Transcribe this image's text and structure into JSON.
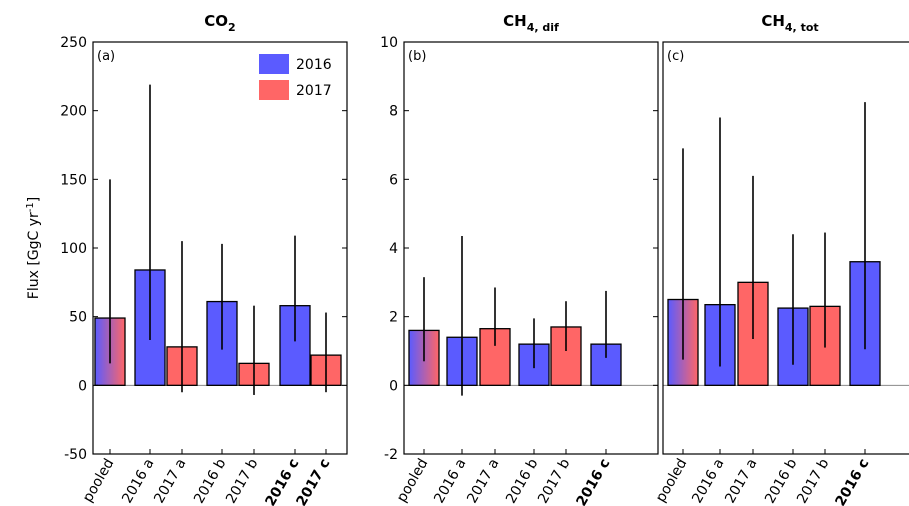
{
  "ylabel": "Flux [GgC yr-1]",
  "ylabel_parts": {
    "main": "Flux [GgC yr",
    "sup": "-1",
    "end": "]"
  },
  "legend": [
    {
      "label": "2016",
      "color": "#5b5bff"
    },
    {
      "label": "2017",
      "color": "#ff6666"
    }
  ],
  "colors": {
    "y2016": "#5b5bff",
    "y2017": "#ff6666",
    "pooled_gradient": [
      "#5b5bff",
      "#ff6666"
    ]
  },
  "chart_data": [
    {
      "type": "bar",
      "panel": "(a)",
      "title_main": "CO",
      "title_sub": "2",
      "ylim": [
        -50,
        250
      ],
      "yticks": [
        -50,
        0,
        50,
        100,
        150,
        200,
        250
      ],
      "categories": [
        "pooled",
        "2016 a",
        "2017 a",
        "2016 b",
        "2017 b",
        "2016 c",
        "2017 c"
      ],
      "bold_categories": [
        "2016 c",
        "2017 c"
      ],
      "values": [
        49,
        84,
        28,
        61,
        16,
        58,
        22
      ],
      "err_low": [
        16,
        33,
        -5,
        26,
        -7,
        32,
        -5
      ],
      "err_high": [
        150,
        219,
        105,
        103,
        58,
        109,
        53
      ],
      "groups": [
        "pooled",
        "2016",
        "2017",
        "2016",
        "2017",
        "2016",
        "2017"
      ],
      "legend_visible": true
    },
    {
      "type": "bar",
      "panel": "(b)",
      "title_main": "CH",
      "title_sub": "4, dif",
      "ylim": [
        -2,
        10
      ],
      "yticks": [
        -2,
        0,
        2,
        4,
        6,
        8,
        10
      ],
      "categories": [
        "pooled",
        "2016 a",
        "2017 a",
        "2016 b",
        "2017 b",
        "2016 c"
      ],
      "bold_categories": [
        "2016 c"
      ],
      "values": [
        1.6,
        1.4,
        1.65,
        1.2,
        1.7,
        1.2
      ],
      "err_low": [
        0.7,
        -0.3,
        1.15,
        0.5,
        1.0,
        0.8
      ],
      "err_high": [
        3.15,
        4.35,
        2.85,
        1.95,
        2.45,
        2.75
      ],
      "groups": [
        "pooled",
        "2016",
        "2017",
        "2016",
        "2017",
        "2016"
      ],
      "legend_visible": false
    },
    {
      "type": "bar",
      "panel": "(c)",
      "title_main": "CH",
      "title_sub": "4, tot",
      "ylim": [
        -2,
        10
      ],
      "yticks": [],
      "categories": [
        "pooled",
        "2016 a",
        "2017 a",
        "2016 b",
        "2017 b",
        "2016 c"
      ],
      "bold_categories": [
        "2016 c"
      ],
      "values": [
        2.5,
        2.35,
        3.0,
        2.25,
        2.3,
        3.6
      ],
      "err_low": [
        0.75,
        0.55,
        1.35,
        0.6,
        1.1,
        1.05
      ],
      "err_high": [
        6.9,
        7.8,
        6.1,
        4.4,
        4.45,
        8.25
      ],
      "groups": [
        "pooled",
        "2016",
        "2017",
        "2016",
        "2017",
        "2016"
      ],
      "legend_visible": false
    }
  ]
}
